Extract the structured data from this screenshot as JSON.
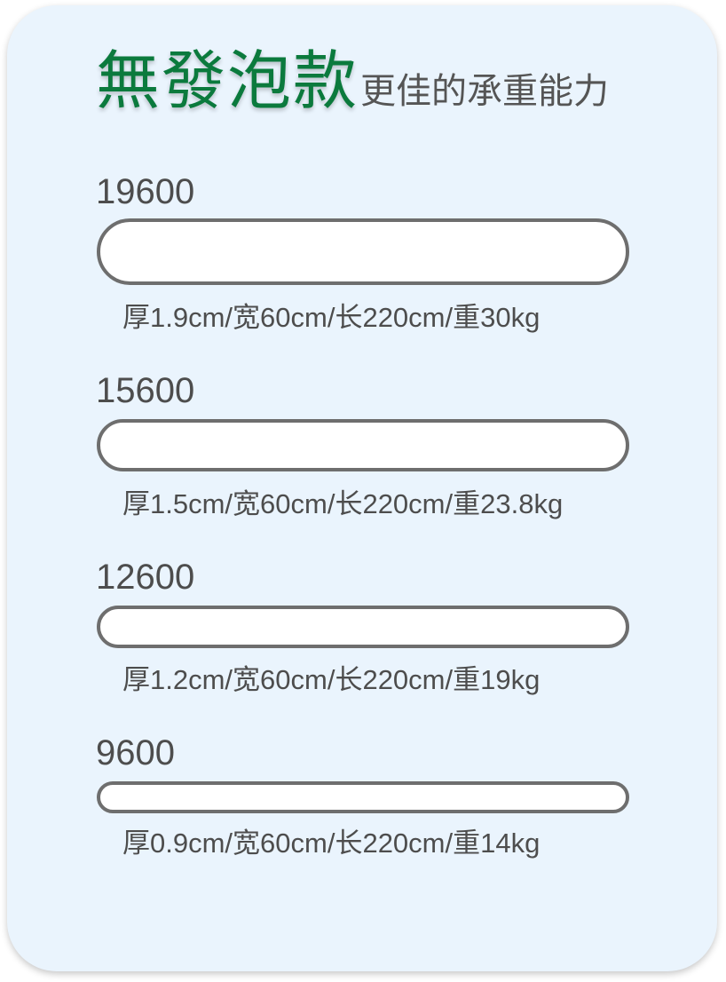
{
  "header": {
    "title_main": "無發泡款",
    "title_sub": "更佳的承重能力"
  },
  "products": [
    {
      "model": "19600",
      "spec": "厚1.9cm/宽60cm/长220cm/重30kg",
      "thickness_cm": 1.9
    },
    {
      "model": "15600",
      "spec": "厚1.5cm/宽60cm/长220cm/重23.8kg",
      "thickness_cm": 1.5
    },
    {
      "model": "12600",
      "spec": "厚1.2cm/宽60cm/长220cm/重19kg",
      "thickness_cm": 1.2
    },
    {
      "model": "9600",
      "spec": "厚0.9cm/宽60cm/长220cm/重14kg",
      "thickness_cm": 0.9
    }
  ],
  "colors": {
    "background": "#eaf4fd",
    "title_accent": "#0b7a3d",
    "text": "#4d4d4d",
    "bar_border": "#6e6e6e",
    "bar_fill": "#ffffff"
  }
}
